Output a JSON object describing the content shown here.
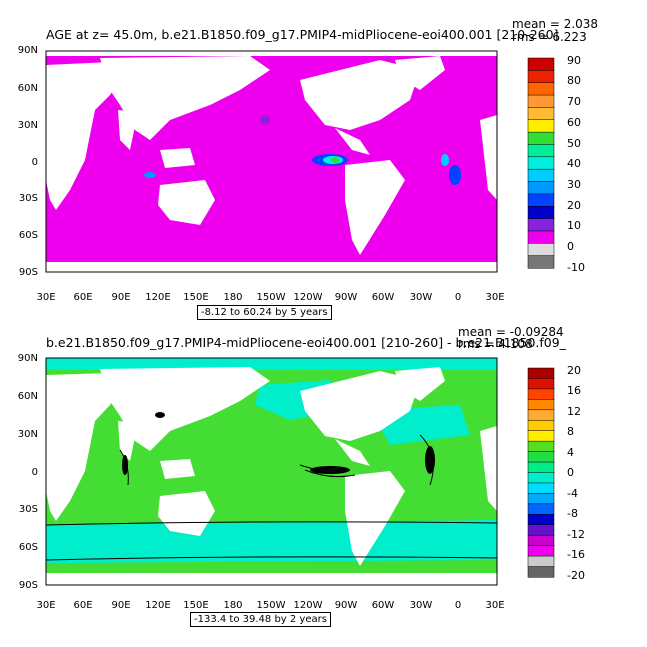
{
  "top": {
    "title": "AGE at z=   45.0m, b.e21.B1850.f09_g17.PMIP4-midPliocene-eoi400.001 [210-260]",
    "mean": "mean = 2.038",
    "rms": "rms = 6.223",
    "range": "-8.12 to 60.24 by 5 years",
    "colorbar_labels": [
      "90",
      "80",
      "70",
      "60",
      "50",
      "40",
      "30",
      "20",
      "10",
      "0",
      "-10"
    ],
    "colorbar_colors": [
      "#cc0000",
      "#ee2200",
      "#ff6600",
      "#ff9933",
      "#ffbb33",
      "#ffee00",
      "#33dd33",
      "#00ee99",
      "#00eedd",
      "#00ccff",
      "#0099ff",
      "#0044ff",
      "#0000cc",
      "#8822dd",
      "#ee00ee",
      "#dddddd",
      "#777777"
    ]
  },
  "bottom": {
    "title": "b.e21.B1850.f09_g17.PMIP4-midPliocene-eoi400.001 [210-260] - b.e21.B1850.f09_",
    "mean": "mean = -0.09284",
    "rms": "rms = 4.108",
    "range": "-133.4 to 39.48 by 2 years",
    "colorbar_labels": [
      "20",
      "16",
      "12",
      "8",
      "4",
      "0",
      "-4",
      "-8",
      "-12",
      "-16",
      "-20"
    ],
    "colorbar_colors": [
      "#aa0000",
      "#dd1100",
      "#ff4400",
      "#ff8800",
      "#ffaa33",
      "#ffcc00",
      "#ffee00",
      "#55dd22",
      "#22dd44",
      "#00ee88",
      "#00eecc",
      "#00ddff",
      "#00aaff",
      "#0066ff",
      "#0000cc",
      "#6611cc",
      "#cc00cc",
      "#ee00ee",
      "#cccccc",
      "#666666"
    ]
  },
  "lat_labels": [
    "90N",
    "60N",
    "30N",
    "0",
    "30S",
    "60S",
    "90S"
  ],
  "lon_labels": [
    "30E",
    "60E",
    "90E",
    "120E",
    "150E",
    "180",
    "150W",
    "120W",
    "90W",
    "60W",
    "30W",
    "0",
    "30E"
  ]
}
